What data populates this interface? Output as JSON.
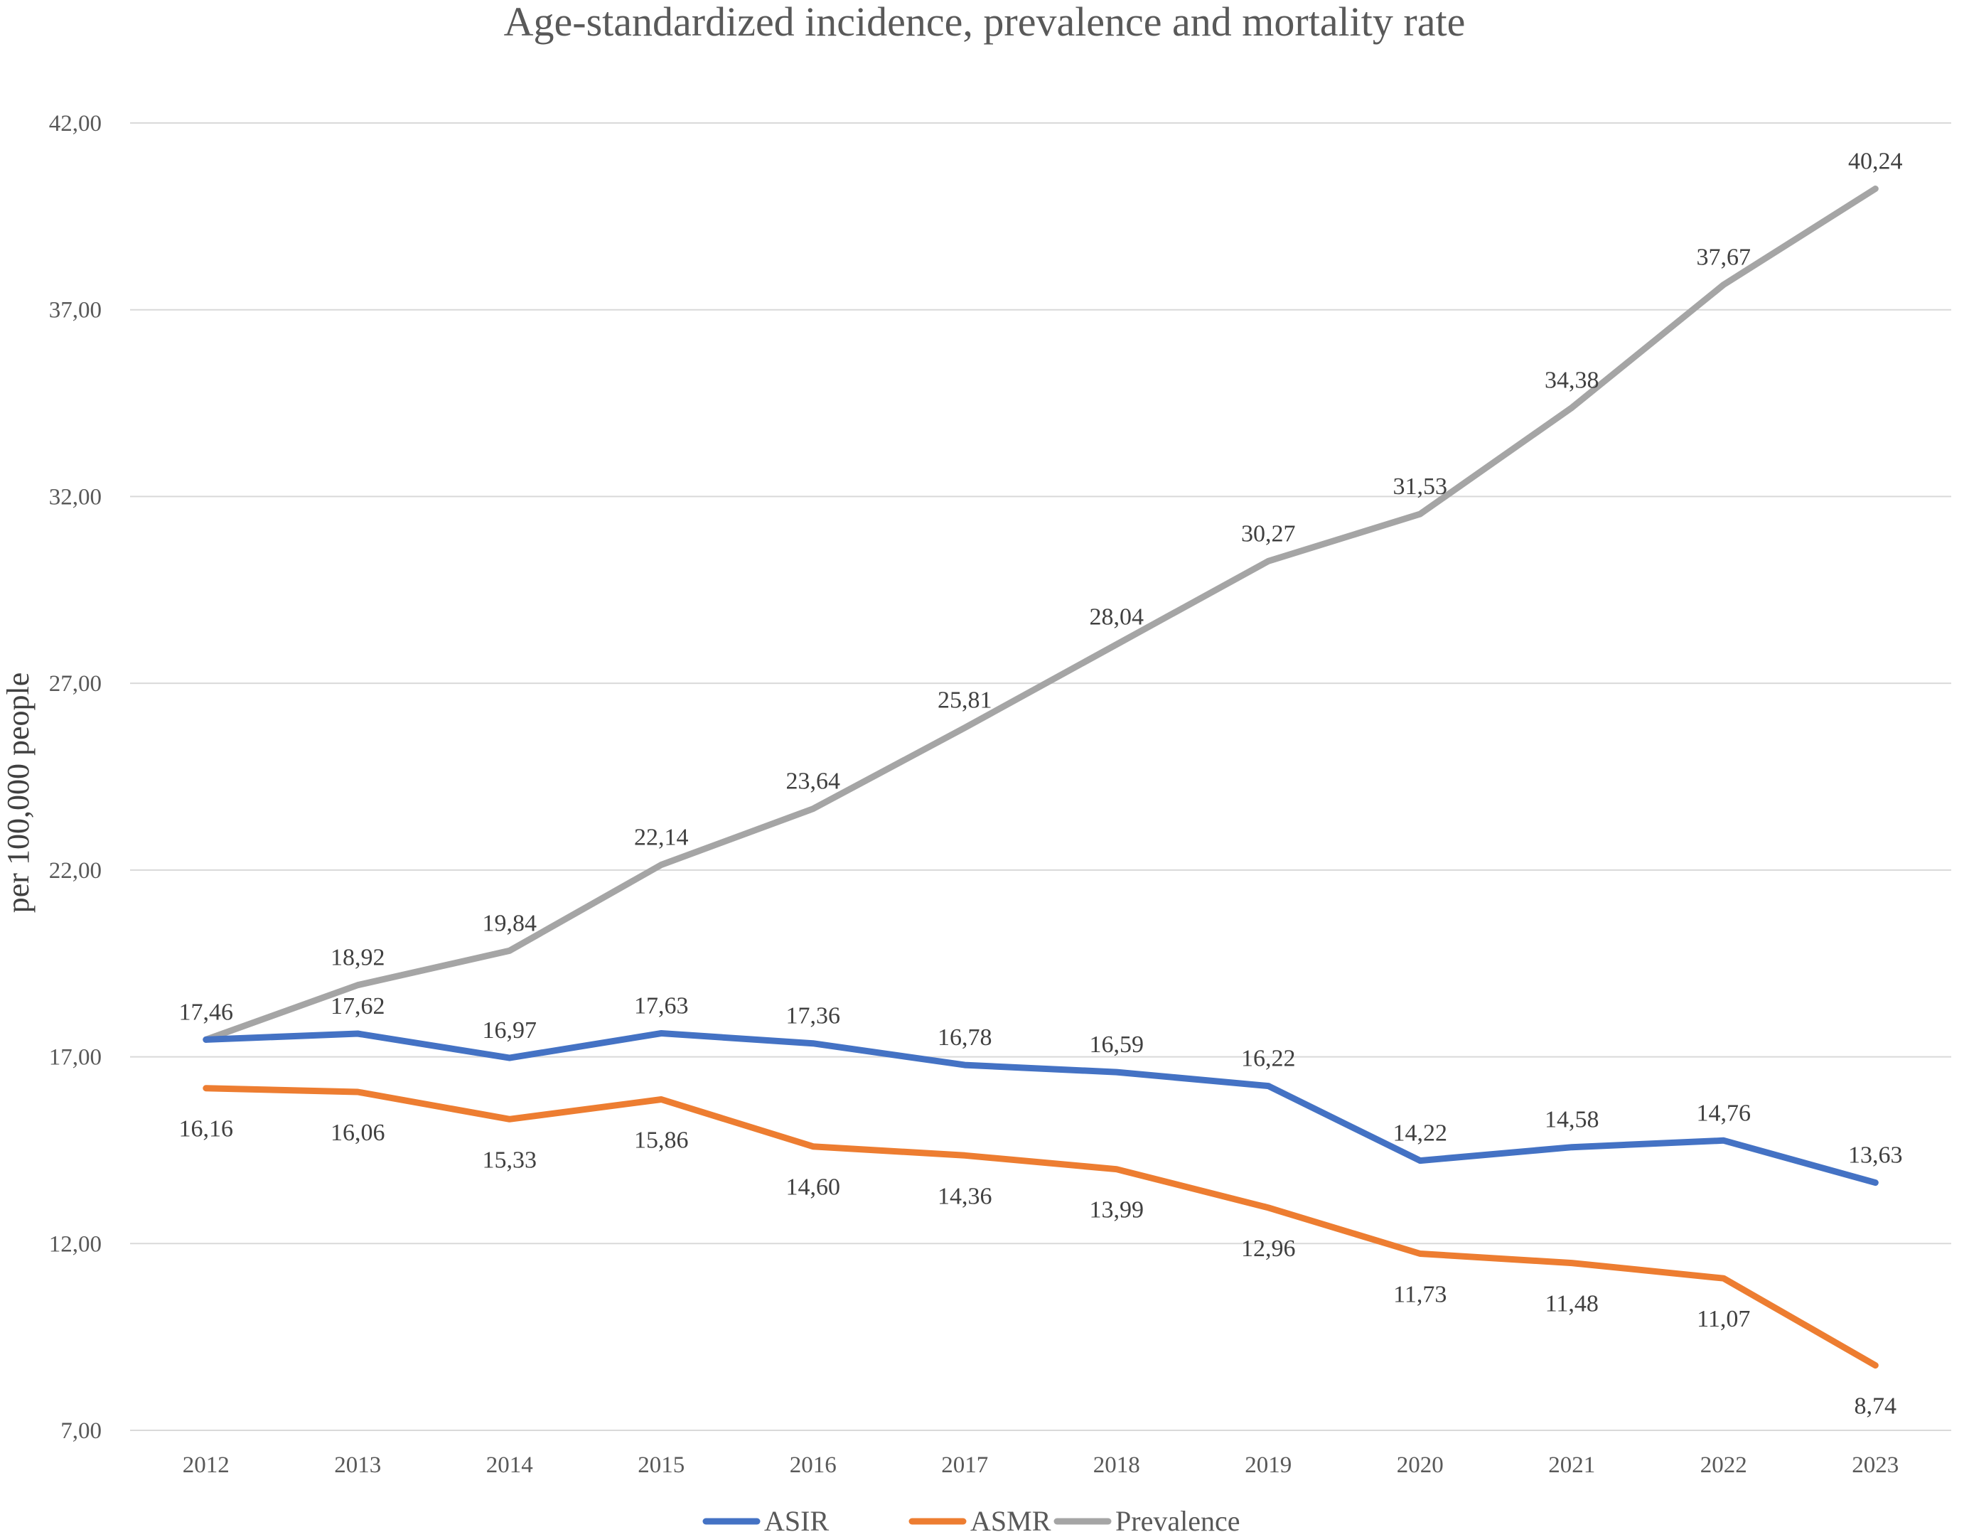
{
  "chart_data": {
    "type": "line",
    "title": "Age-standardized incidence, prevalence and mortality rate",
    "xlabel": "",
    "ylabel": "per 100,000 people",
    "ylim": [
      7,
      42
    ],
    "yticks": [
      7,
      12,
      17,
      22,
      27,
      32,
      37,
      42
    ],
    "ytick_labels": [
      "7,00",
      "12,00",
      "17,00",
      "22,00",
      "27,00",
      "32,00",
      "37,00",
      "42,00"
    ],
    "categories": [
      "2012",
      "2013",
      "2014",
      "2015",
      "2016",
      "2017",
      "2018",
      "2019",
      "2020",
      "2021",
      "2022",
      "2023"
    ],
    "grid": "horizontal",
    "legend_position": "bottom",
    "series": [
      {
        "name": "ASIR",
        "color": "#4472C4",
        "label_position": "above",
        "values": [
          17.46,
          17.62,
          16.97,
          17.63,
          17.36,
          16.78,
          16.59,
          16.22,
          14.22,
          14.58,
          14.76,
          13.63
        ],
        "labels": [
          "17,46",
          "17,62",
          "16,97",
          "17,63",
          "17,36",
          "16,78",
          "16,59",
          "16,22",
          "14,22",
          "14,58",
          "14,76",
          "13,63"
        ]
      },
      {
        "name": "ASMR",
        "color": "#ED7D31",
        "label_position": "below",
        "values": [
          16.16,
          16.06,
          15.33,
          15.86,
          14.6,
          14.36,
          13.99,
          12.96,
          11.73,
          11.48,
          11.07,
          8.74
        ],
        "labels": [
          "16,16",
          "16,06",
          "15,33",
          "15,86",
          "14,60",
          "14,36",
          "13,99",
          "12,96",
          "11,73",
          "11,48",
          "11,07",
          "8,74"
        ]
      },
      {
        "name": "Prevalence",
        "color": "#A5A5A5",
        "label_position": "above",
        "values": [
          17.46,
          18.92,
          19.84,
          22.14,
          23.64,
          25.81,
          28.04,
          30.27,
          31.53,
          34.38,
          37.67,
          40.24
        ],
        "labels": [
          "",
          "18,92",
          "19,84",
          "22,14",
          "23,64",
          "25,81",
          "28,04",
          "30,27",
          "31,53",
          "34,38",
          "37,67",
          "40,24"
        ]
      }
    ]
  }
}
